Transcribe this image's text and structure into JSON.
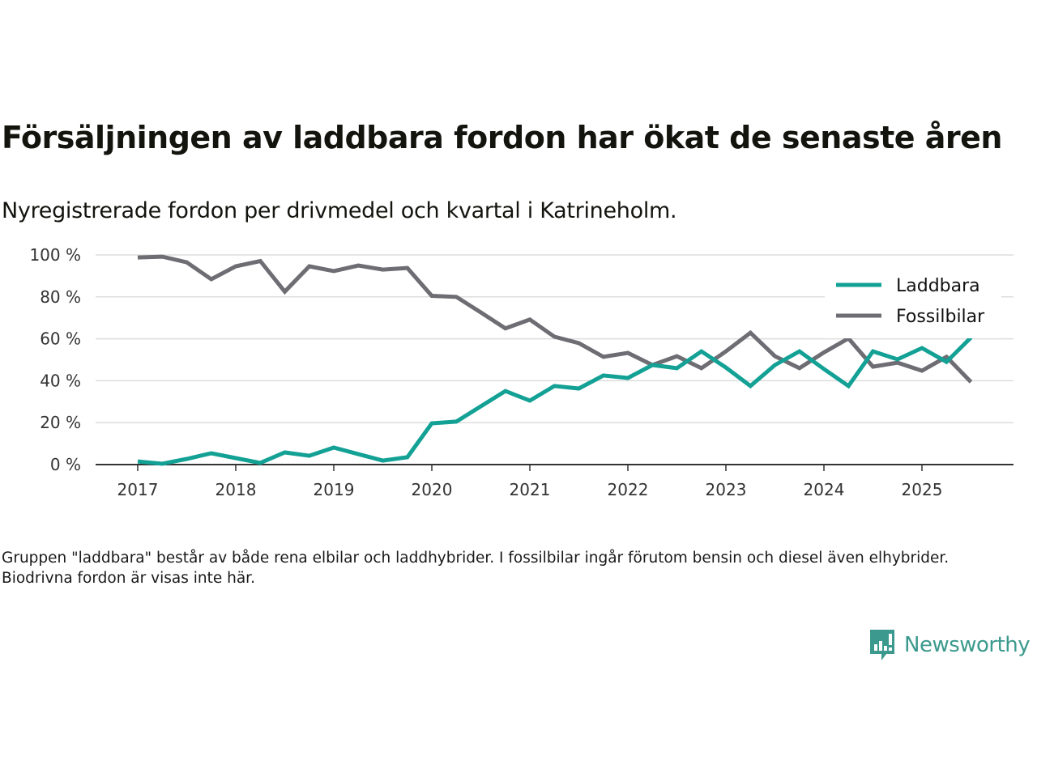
{
  "header": {
    "title": "Försäljningen av laddbara fordon har ökat de senaste åren",
    "subtitle": "Nyregistrerade fordon per drivmedel och kvartal i Katrineholm."
  },
  "footer": {
    "note": "Gruppen \"laddbara\" består av både rena elbilar och laddhybrider. I fossilbilar ingår förutom bensin och diesel även elhybrider. Biodrivna fordon är visas inte här.",
    "brand": "Newsworthy",
    "brand_icon": "bar-chart-speech-bubble-icon"
  },
  "colors": {
    "laddbara": "#14a195",
    "fossilbilar": "#6e6d73",
    "grid": "#dddddd",
    "axis": "#333333",
    "brand": "#3b9a8d"
  },
  "chart_data": {
    "type": "line",
    "title": "Försäljningen av laddbara fordon har ökat de senaste åren",
    "subtitle": "Nyregistrerade fordon per drivmedel och kvartal i Katrineholm.",
    "xlabel": "",
    "ylabel": "",
    "x_start": 2017.0,
    "x_step": 0.25,
    "x_range": [
      2016.6,
      2025.9
    ],
    "ylim": [
      0,
      100
    ],
    "y_ticks": [
      0,
      20,
      40,
      60,
      80,
      100
    ],
    "y_tick_labels": [
      "0 %",
      "20 %",
      "40 %",
      "60 %",
      "80 %",
      "100 %"
    ],
    "x_ticks": [
      2017,
      2018,
      2019,
      2020,
      2021,
      2022,
      2023,
      2024,
      2025
    ],
    "x_tick_labels": [
      "2017",
      "2018",
      "2019",
      "2020",
      "2021",
      "2022",
      "2023",
      "2024",
      "2025"
    ],
    "grid": true,
    "legend_position": "top-right",
    "series": [
      {
        "name": "Laddbara",
        "color": "#14a195",
        "values": [
          1.5,
          0.4,
          2.7,
          5.4,
          3.1,
          0.8,
          5.8,
          4.2,
          8.1,
          5.0,
          1.9,
          3.5,
          19.7,
          20.5,
          27.8,
          35.1,
          30.5,
          37.5,
          36.3,
          42.5,
          41.3,
          47.5,
          46.0,
          54.0,
          46.3,
          37.5,
          47.5,
          54.0,
          45.6,
          37.5,
          54.0,
          50.2,
          55.6,
          49.0,
          60.6
        ]
      },
      {
        "name": "Fossilbilar",
        "color": "#6e6d73",
        "values": [
          98.8,
          99.2,
          96.5,
          88.4,
          94.6,
          97.1,
          82.5,
          94.6,
          92.3,
          95.0,
          93.0,
          93.8,
          80.5,
          80.0,
          72.6,
          65.0,
          69.2,
          61.0,
          57.9,
          51.4,
          53.3,
          47.5,
          51.7,
          46.0,
          54.0,
          62.9,
          51.7,
          46.0,
          53.5,
          60.2,
          46.7,
          48.6,
          44.8,
          51.4,
          39.4
        ]
      }
    ]
  }
}
